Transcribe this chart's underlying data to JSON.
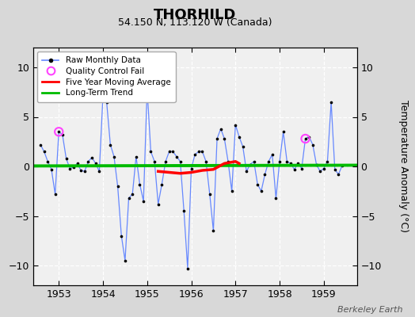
{
  "title": "THORHILD",
  "subtitle": "54.150 N, 113.120 W (Canada)",
  "ylabel": "Temperature Anomaly (°C)",
  "watermark": "Berkeley Earth",
  "background_color": "#d8d8d8",
  "plot_bg_color": "#f0f0f0",
  "ylim": [
    -12,
    12
  ],
  "xlim": [
    1952.42,
    1959.75
  ],
  "xticks": [
    1953,
    1954,
    1955,
    1956,
    1957,
    1958,
    1959
  ],
  "yticks": [
    -10,
    -5,
    0,
    5,
    10
  ],
  "raw_data": {
    "x": [
      1952.583,
      1952.667,
      1952.75,
      1952.833,
      1952.917,
      1953.0,
      1953.083,
      1953.167,
      1953.25,
      1953.333,
      1953.417,
      1953.5,
      1953.583,
      1953.667,
      1953.75,
      1953.833,
      1953.917,
      1954.0,
      1954.083,
      1954.167,
      1954.25,
      1954.333,
      1954.417,
      1954.5,
      1954.583,
      1954.667,
      1954.75,
      1954.833,
      1954.917,
      1955.0,
      1955.083,
      1955.167,
      1955.25,
      1955.333,
      1955.417,
      1955.5,
      1955.583,
      1955.667,
      1955.75,
      1955.833,
      1955.917,
      1956.0,
      1956.083,
      1956.167,
      1956.25,
      1956.333,
      1956.417,
      1956.5,
      1956.583,
      1956.667,
      1956.75,
      1956.833,
      1956.917,
      1957.0,
      1957.083,
      1957.167,
      1957.25,
      1957.333,
      1957.417,
      1957.5,
      1957.583,
      1957.667,
      1957.75,
      1957.833,
      1957.917,
      1958.0,
      1958.083,
      1958.167,
      1958.25,
      1958.333,
      1958.417,
      1958.5,
      1958.583,
      1958.667,
      1958.75,
      1958.833,
      1958.917,
      1959.0,
      1959.083,
      1959.167,
      1959.25,
      1959.333,
      1959.417
    ],
    "y": [
      2.2,
      1.5,
      0.5,
      -0.3,
      -2.8,
      3.5,
      3.2,
      0.8,
      -0.2,
      -0.1,
      0.3,
      -0.4,
      -0.5,
      0.5,
      0.9,
      0.3,
      -0.5,
      7.2,
      6.5,
      2.2,
      1.0,
      -2.0,
      -7.0,
      -9.5,
      -3.2,
      -2.8,
      1.0,
      -1.8,
      -3.5,
      7.8,
      1.5,
      0.5,
      -3.8,
      -1.8,
      0.5,
      1.5,
      1.5,
      1.0,
      0.5,
      -4.5,
      -10.3,
      -0.2,
      1.2,
      1.5,
      1.5,
      0.5,
      -2.8,
      -6.5,
      2.8,
      3.8,
      2.8,
      0.5,
      -2.5,
      4.2,
      3.0,
      2.0,
      -0.5,
      0.2,
      0.5,
      -1.8,
      -2.5,
      -0.8,
      0.5,
      1.2,
      -3.2,
      0.5,
      3.5,
      0.5,
      0.3,
      -0.3,
      0.3,
      -0.2,
      2.8,
      3.0,
      2.2,
      0.2,
      -0.5,
      -0.2,
      0.5,
      6.5,
      -0.3,
      -0.8,
      0.1
    ]
  },
  "qc_fail_points": {
    "x": [
      1953.0,
      1958.583
    ],
    "y": [
      3.5,
      2.8
    ]
  },
  "moving_avg": {
    "x": [
      1955.25,
      1955.5,
      1955.75,
      1956.0,
      1956.25,
      1956.5,
      1956.583,
      1956.75,
      1957.0,
      1957.083
    ],
    "y": [
      -0.5,
      -0.6,
      -0.7,
      -0.6,
      -0.4,
      -0.3,
      -0.1,
      0.3,
      0.5,
      0.3
    ]
  },
  "trend_line": {
    "x": [
      1952.42,
      1959.75
    ],
    "y": [
      0.05,
      0.12
    ]
  },
  "line_color": "#6688ff",
  "dot_color": "#000000",
  "qc_color": "#ff44ff",
  "moving_avg_color": "#ff0000",
  "trend_color": "#00bb00",
  "legend_labels": [
    "Raw Monthly Data",
    "Quality Control Fail",
    "Five Year Moving Average",
    "Long-Term Trend"
  ]
}
